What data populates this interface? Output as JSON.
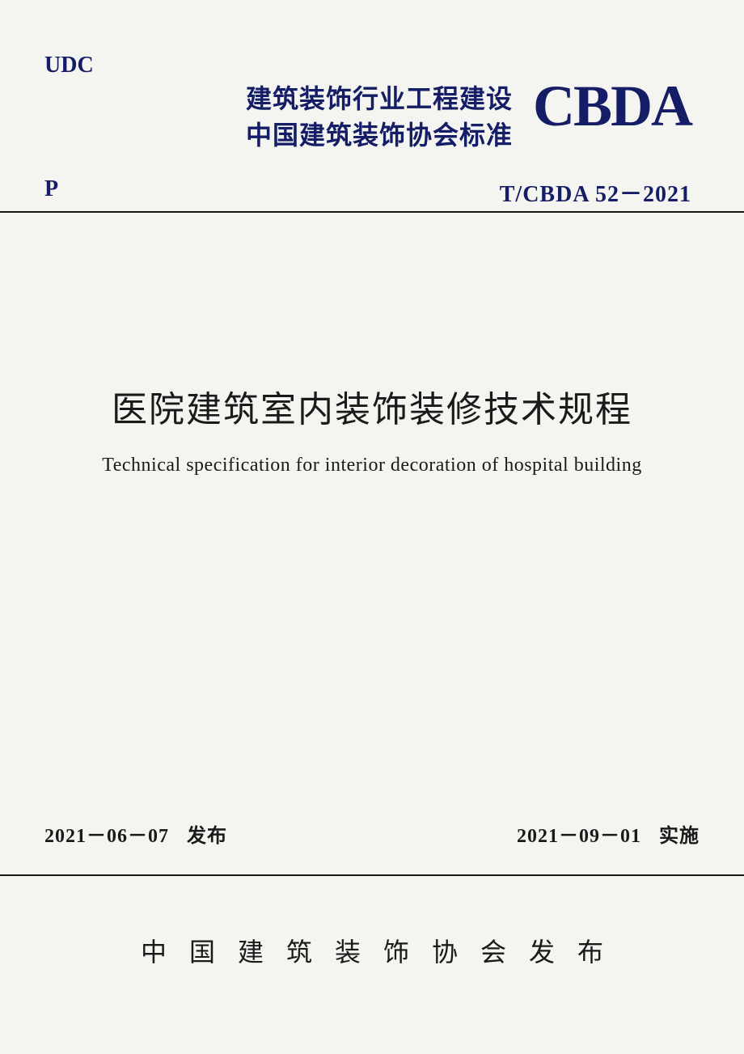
{
  "header": {
    "udc_label": "UDC",
    "p_label": "P",
    "org_line1": "建筑装饰行业工程建设",
    "org_line2": "中国建筑装饰协会标准",
    "logo_text": "CBDA",
    "standard_code": "T/CBDA  52－2021"
  },
  "title": {
    "chinese": "医院建筑室内装饰装修技术规程",
    "english": "Technical specification for interior decoration of hospital building"
  },
  "dates": {
    "publish_date": "2021－06－07",
    "publish_label": "发布",
    "effective_date": "2021－09－01",
    "effective_label": "实施"
  },
  "publisher": {
    "name": "中国建筑装饰协会发布"
  },
  "colors": {
    "primary_blue": "#141d66",
    "text_black": "#1a1a1a",
    "background": "#f4f4f0",
    "rule_color": "#1a1a1a"
  },
  "typography": {
    "title_cn_fontsize": 44,
    "title_en_fontsize": 24,
    "header_fontsize": 32,
    "logo_fontsize": 72,
    "code_fontsize": 28,
    "date_fontsize": 24,
    "publisher_fontsize": 32
  }
}
